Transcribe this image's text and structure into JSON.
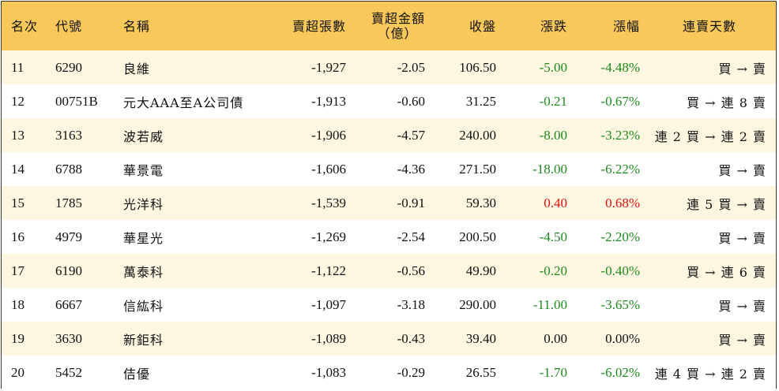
{
  "headers": {
    "rank": "名次",
    "code": "代號",
    "name": "名稱",
    "net_sell_shares": "賣超張數",
    "net_sell_amount_line1": "賣超金額",
    "net_sell_amount_line2": "（億）",
    "close": "收盤",
    "change": "漲跌",
    "change_pct": "漲幅",
    "streak": "連賣天數"
  },
  "colors": {
    "header_bg": "#f9c85a",
    "stripe_bg": "#fdf6e1",
    "down": "#1e8a1e",
    "up": "#e01010"
  },
  "rows": [
    {
      "rank": "11",
      "code": "6290",
      "name": "良維",
      "shares": "-1,927",
      "amount": "-2.05",
      "close": "106.50",
      "change": "-5.00",
      "pct": "-4.48%",
      "dir": "down",
      "streak": "買 → 賣"
    },
    {
      "rank": "12",
      "code": "00751B",
      "name": "元大AAA至A公司債",
      "shares": "-1,913",
      "amount": "-0.60",
      "close": "31.25",
      "change": "-0.21",
      "pct": "-0.67%",
      "dir": "down",
      "streak": "買 → 連 8 賣"
    },
    {
      "rank": "13",
      "code": "3163",
      "name": "波若威",
      "shares": "-1,906",
      "amount": "-4.57",
      "close": "240.00",
      "change": "-8.00",
      "pct": "-3.23%",
      "dir": "down",
      "streak": "連 2 買 → 連 2 賣"
    },
    {
      "rank": "14",
      "code": "6788",
      "name": "華景電",
      "shares": "-1,606",
      "amount": "-4.36",
      "close": "271.50",
      "change": "-18.00",
      "pct": "-6.22%",
      "dir": "down",
      "streak": "買 → 賣"
    },
    {
      "rank": "15",
      "code": "1785",
      "name": "光洋科",
      "shares": "-1,539",
      "amount": "-0.91",
      "close": "59.30",
      "change": "0.40",
      "pct": "0.68%",
      "dir": "up",
      "streak": "連 5 買 → 賣"
    },
    {
      "rank": "16",
      "code": "4979",
      "name": "華星光",
      "shares": "-1,269",
      "amount": "-2.54",
      "close": "200.50",
      "change": "-4.50",
      "pct": "-2.20%",
      "dir": "down",
      "streak": "買 → 賣"
    },
    {
      "rank": "17",
      "code": "6190",
      "name": "萬泰科",
      "shares": "-1,122",
      "amount": "-0.56",
      "close": "49.90",
      "change": "-0.20",
      "pct": "-0.40%",
      "dir": "down",
      "streak": "買 → 連 6 賣"
    },
    {
      "rank": "18",
      "code": "6667",
      "name": "信紘科",
      "shares": "-1,097",
      "amount": "-3.18",
      "close": "290.00",
      "change": "-11.00",
      "pct": "-3.65%",
      "dir": "down",
      "streak": "買 → 賣"
    },
    {
      "rank": "19",
      "code": "3630",
      "name": "新鉅科",
      "shares": "-1,089",
      "amount": "-0.43",
      "close": "39.40",
      "change": "0.00",
      "pct": "0.00%",
      "dir": "flat",
      "streak": "買 → 賣"
    },
    {
      "rank": "20",
      "code": "5452",
      "name": "佶優",
      "shares": "-1,083",
      "amount": "-0.29",
      "close": "26.55",
      "change": "-1.70",
      "pct": "-6.02%",
      "dir": "down",
      "streak": "連 4 買 → 連 2 賣"
    }
  ]
}
